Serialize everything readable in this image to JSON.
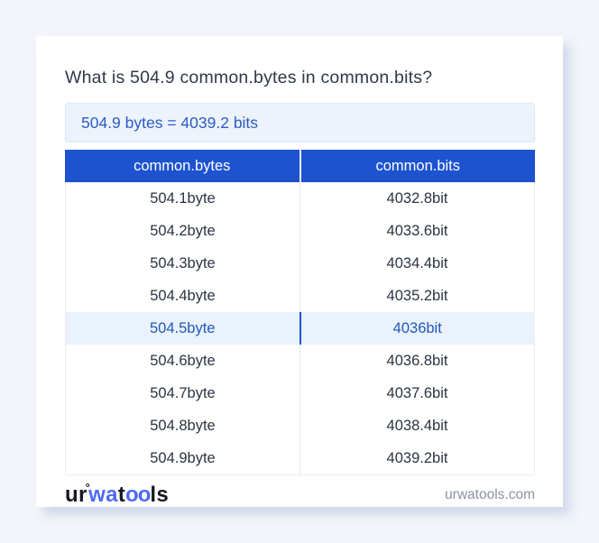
{
  "page": {
    "title": "What is 504.9 common.bytes in common.bits?",
    "result": "504.9 bytes = 4039.2 bits",
    "domain": "urwatools.com"
  },
  "logo": {
    "part_ur": "ur",
    "degree_mark": "°",
    "part_wa": "wa",
    "part_t": "t",
    "part_oo": "oo",
    "part_ls": "ls"
  },
  "table": {
    "headers": [
      "common.bytes",
      "common.bits"
    ],
    "rows": [
      {
        "bytes": "504.1byte",
        "bits": "4032.8bit",
        "highlight": false
      },
      {
        "bytes": "504.2byte",
        "bits": "4033.6bit",
        "highlight": false
      },
      {
        "bytes": "504.3byte",
        "bits": "4034.4bit",
        "highlight": false
      },
      {
        "bytes": "504.4byte",
        "bits": "4035.2bit",
        "highlight": false
      },
      {
        "bytes": "504.5byte",
        "bits": "4036bit",
        "highlight": true
      },
      {
        "bytes": "504.6byte",
        "bits": "4036.8bit",
        "highlight": false
      },
      {
        "bytes": "504.7byte",
        "bits": "4037.6bit",
        "highlight": false
      },
      {
        "bytes": "504.8byte",
        "bits": "4038.4bit",
        "highlight": false
      },
      {
        "bytes": "504.9byte",
        "bits": "4039.2bit",
        "highlight": false
      }
    ]
  },
  "colors": {
    "page_bg": "#f3f5fa",
    "card_bg": "#ffffff",
    "title_text": "#2f3a49",
    "result_bg": "#ecf3fc",
    "result_border": "#dde9f7",
    "result_text": "#2d5bc2",
    "header_bg": "#1d53cf",
    "header_text": "#ffffff",
    "row_text": "#2b3441",
    "highlight_bg": "#e9f2fd",
    "highlight_text": "#2357ba",
    "divider": "#e7eaf0",
    "table_border": "#eceef3",
    "domain_text": "#8b92a2",
    "logo_black": "#15181f",
    "logo_blue": "#4e6af5"
  }
}
